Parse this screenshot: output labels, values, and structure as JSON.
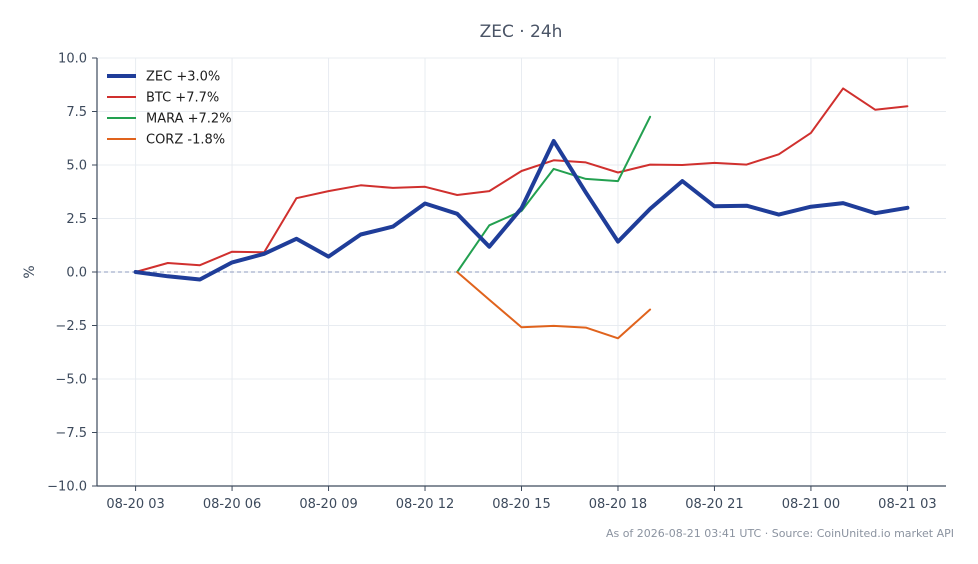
{
  "chart_data": {
    "type": "line",
    "title": "ZEC · 24h",
    "xlabel": "",
    "ylabel": "%",
    "ylim": [
      -10,
      10
    ],
    "yticks": [
      "10.0",
      "7.5",
      "5.0",
      "2.5",
      "0.0",
      "−2.5",
      "−5.0",
      "−7.5",
      "−10.0"
    ],
    "ytick_values": [
      10,
      7.5,
      5,
      2.5,
      0,
      -2.5,
      -5,
      -7.5,
      -10
    ],
    "xticks": [
      "08-20 03",
      "08-20 06",
      "08-20 09",
      "08-20 12",
      "08-20 15",
      "08-20 18",
      "08-20 21",
      "08-21 00",
      "08-21 03"
    ],
    "xtick_values": [
      3,
      6,
      9,
      12,
      15,
      18,
      21,
      24,
      27
    ],
    "xlim": [
      1.8,
      28.2
    ],
    "grid": true,
    "zero_line": true,
    "legend_position": "top-left",
    "series": [
      {
        "name": "ZEC +3.0%",
        "color": "#1f3d99",
        "width": 4,
        "x": [
          3,
          4,
          5,
          6,
          7,
          8,
          9,
          10,
          11,
          12,
          13,
          14,
          15,
          16,
          17,
          18,
          19,
          20,
          21,
          22,
          23,
          24,
          25,
          26,
          27
        ],
        "values": [
          0.0,
          -0.2,
          -0.35,
          0.45,
          0.85,
          1.55,
          0.72,
          1.75,
          2.12,
          3.2,
          2.72,
          1.18,
          2.98,
          6.12,
          3.72,
          1.42,
          2.95,
          4.25,
          3.07,
          3.1,
          2.68,
          3.05,
          3.22,
          2.75,
          3.0
        ]
      },
      {
        "name": "BTC +7.7%",
        "color": "#d0302e",
        "width": 2,
        "x": [
          3,
          4,
          5,
          6,
          7,
          8,
          9,
          10,
          11,
          12,
          13,
          14,
          15,
          16,
          17,
          18,
          19,
          20,
          21,
          22,
          23,
          24,
          25,
          26,
          27
        ],
        "values": [
          0.0,
          0.42,
          0.32,
          0.95,
          0.92,
          3.45,
          3.78,
          4.05,
          3.93,
          3.98,
          3.6,
          3.78,
          4.72,
          5.22,
          5.12,
          4.65,
          5.02,
          5.0,
          5.1,
          5.02,
          5.5,
          6.5,
          8.58,
          7.58,
          7.75
        ]
      },
      {
        "name": "MARA +7.2%",
        "color": "#23a050",
        "width": 2,
        "x": [
          13,
          14,
          15,
          16,
          17,
          18,
          19
        ],
        "values": [
          0.0,
          2.18,
          2.85,
          4.82,
          4.35,
          4.25,
          7.25
        ]
      },
      {
        "name": "CORZ -1.8%",
        "color": "#e0631d",
        "width": 2,
        "x": [
          13,
          14,
          15,
          16,
          17,
          18,
          19
        ],
        "values": [
          0.0,
          -1.3,
          -2.58,
          -2.52,
          -2.6,
          -3.1,
          -1.75
        ]
      }
    ]
  },
  "footer": "As of 2026-08-21 03:41 UTC · Source: CoinUnited.io market API"
}
